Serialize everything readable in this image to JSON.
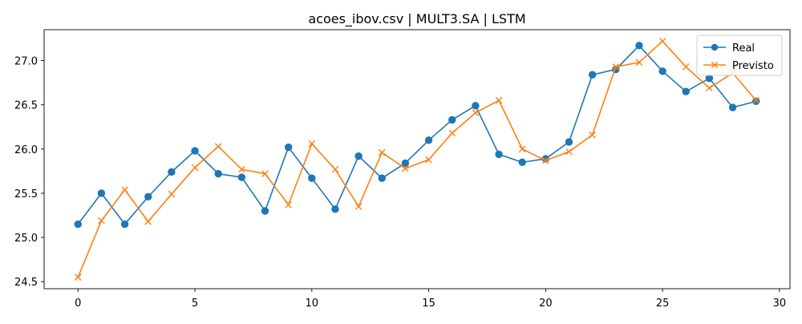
{
  "chart_data": {
    "type": "line",
    "title": "acoes_ibov.csv | MULT3.SA | LSTM",
    "xlabel": "",
    "ylabel": "",
    "x": [
      0,
      1,
      2,
      3,
      4,
      5,
      6,
      7,
      8,
      9,
      10,
      11,
      12,
      13,
      14,
      15,
      16,
      17,
      18,
      19,
      20,
      21,
      22,
      23,
      24,
      25,
      26,
      27,
      28,
      29
    ],
    "xlim": [
      -1.45,
      30.45
    ],
    "ylim": [
      24.42,
      27.35
    ],
    "xticks": [
      0,
      5,
      10,
      15,
      20,
      25,
      30
    ],
    "yticks": [
      24.5,
      25.0,
      25.5,
      26.0,
      26.5,
      27.0
    ],
    "xtick_labels": [
      "0",
      "5",
      "10",
      "15",
      "20",
      "25",
      "30"
    ],
    "ytick_labels": [
      "24.5",
      "25.0",
      "25.5",
      "26.0",
      "26.5",
      "27.0"
    ],
    "grid": false,
    "legend_position": "top-right",
    "series": [
      {
        "name": "Real",
        "color": "#1f77b4",
        "marker": "circle",
        "values": [
          25.15,
          25.5,
          25.15,
          25.46,
          25.74,
          25.98,
          25.72,
          25.68,
          25.3,
          26.02,
          25.67,
          25.32,
          25.92,
          25.67,
          25.84,
          26.1,
          26.33,
          26.49,
          25.94,
          25.85,
          25.89,
          26.08,
          26.84,
          26.9,
          27.17,
          26.88,
          26.65,
          26.8,
          26.47,
          26.54
        ]
      },
      {
        "name": "Previsto",
        "color": "#ff7f0e",
        "marker": "x",
        "values": [
          24.55,
          25.19,
          25.54,
          25.18,
          25.49,
          25.79,
          26.03,
          25.77,
          25.72,
          25.37,
          26.06,
          25.77,
          25.35,
          25.96,
          25.78,
          25.88,
          26.18,
          26.41,
          26.55,
          26.0,
          25.87,
          25.97,
          26.16,
          26.93,
          26.98,
          27.22,
          26.93,
          26.69,
          26.86,
          26.55
        ]
      }
    ]
  }
}
